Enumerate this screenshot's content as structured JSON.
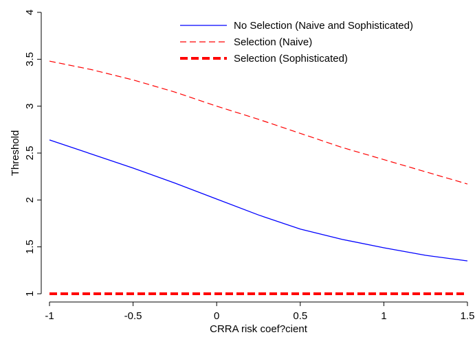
{
  "chart_data": {
    "type": "line",
    "xlabel": "CRRA risk coef?cient",
    "ylabel": "Threshold",
    "xlim": [
      -1,
      1.5
    ],
    "ylim": [
      1,
      4
    ],
    "xticks": [
      -1,
      -0.5,
      0,
      0.5,
      1,
      1.5
    ],
    "xtick_labels": [
      "-1",
      "-0.5",
      "0",
      "0.5",
      "1",
      "1.5"
    ],
    "yticks": [
      1,
      1.5,
      2,
      2.5,
      3,
      3.5,
      4
    ],
    "ytick_labels": [
      "1",
      "1.5",
      "2",
      "2.5",
      "3",
      "3.5",
      "4"
    ],
    "grid": false,
    "legend_position": "top-right",
    "series": [
      {
        "name": "No Selection (Naive and Sophisticated)",
        "color": "#0000ff",
        "style": "solid-thin",
        "x": [
          -1,
          -0.75,
          -0.5,
          -0.25,
          0,
          0.25,
          0.5,
          0.75,
          1,
          1.25,
          1.5
        ],
        "y": [
          2.64,
          2.49,
          2.34,
          2.18,
          2.01,
          1.84,
          1.69,
          1.58,
          1.49,
          1.41,
          1.35
        ]
      },
      {
        "name": "Selection (Naive)",
        "color": "#ff0000",
        "style": "dashed-thin",
        "x": [
          -1,
          -0.75,
          -0.5,
          -0.25,
          0,
          0.25,
          0.5,
          0.75,
          1,
          1.25,
          1.5
        ],
        "y": [
          3.48,
          3.39,
          3.28,
          3.15,
          3.0,
          2.86,
          2.71,
          2.56,
          2.43,
          2.3,
          2.17
        ]
      },
      {
        "name": "Selection (Sophisticated)",
        "color": "#ff0000",
        "style": "dashed-thick",
        "x": [
          -1,
          -0.75,
          -0.5,
          -0.25,
          0,
          0.25,
          0.5,
          0.75,
          1,
          1.25,
          1.5
        ],
        "y": [
          1,
          1,
          1,
          1,
          1,
          1,
          1,
          1,
          1,
          1,
          1
        ]
      }
    ]
  }
}
